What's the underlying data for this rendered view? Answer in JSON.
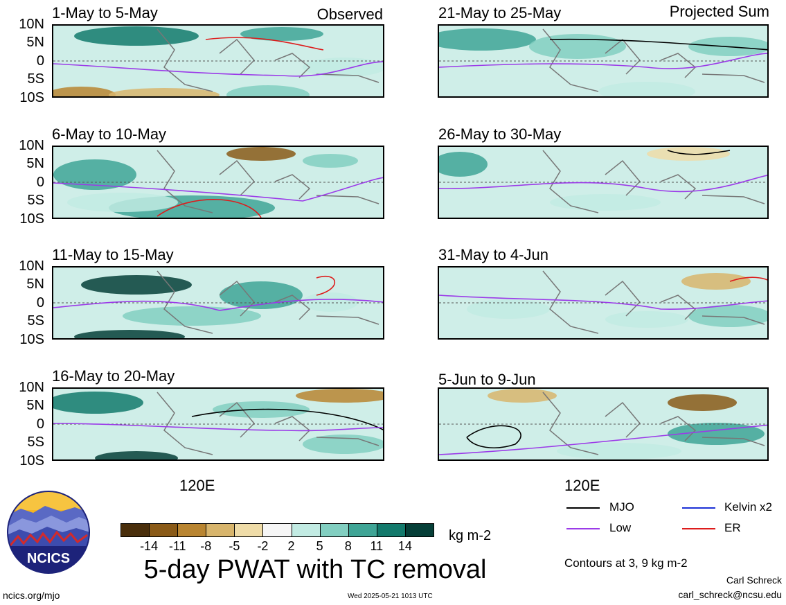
{
  "chart_data": {
    "type": "heatmap",
    "title": "5-day PWAT with TC removal",
    "units": "kg m-2",
    "y_ticks": [
      "10N",
      "5N",
      "0",
      "5S",
      "10S"
    ],
    "x_label": "120E",
    "column_labels": {
      "left": "Observed",
      "right": "Projected Sum"
    },
    "panels": [
      {
        "period": "1-May to 5-May",
        "column": "Observed"
      },
      {
        "period": "6-May to 10-May",
        "column": "Observed"
      },
      {
        "period": "11-May to 15-May",
        "column": "Observed"
      },
      {
        "period": "16-May to 20-May",
        "column": "Observed"
      },
      {
        "period": "21-May to 25-May",
        "column": "Projected Sum"
      },
      {
        "period": "26-May to 30-May",
        "column": "Projected Sum"
      },
      {
        "period": "31-May to 4-Jun",
        "column": "Projected Sum"
      },
      {
        "period": "5-Jun to 9-Jun",
        "column": "Projected Sum"
      }
    ],
    "colorbar": {
      "levels": [
        "-14",
        "-11",
        "-8",
        "-5",
        "-2",
        "2",
        "5",
        "8",
        "11",
        "14"
      ],
      "colors": [
        "#4a2f0c",
        "#8a5a17",
        "#b98531",
        "#d8b56c",
        "#efdca8",
        "#f6f6f6",
        "#c2ebe3",
        "#82cfc1",
        "#3fa596",
        "#137a6c",
        "#063f38"
      ]
    },
    "contour_note": "Contours at 3, 9 kg m-2",
    "legend": [
      {
        "label": "MJO",
        "color": "#000000"
      },
      {
        "label": "Kelvin x2",
        "color": "#1a2fd6"
      },
      {
        "label": "Low",
        "color": "#9b3be8"
      },
      {
        "label": "ER",
        "color": "#dd1c1c"
      }
    ]
  },
  "branding": {
    "logo_text": "NCICS",
    "url": "ncics.org/mjo",
    "timestamp": "Wed 2025-05-21 1013 UTC",
    "author": "Carl Schreck",
    "email": "carl_schreck@ncsu.edu"
  }
}
